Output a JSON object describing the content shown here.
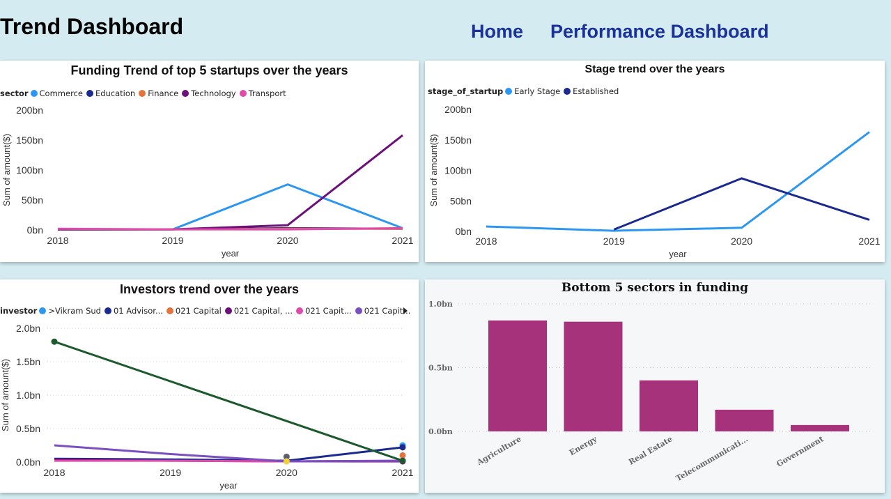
{
  "header": {
    "title": "Trend Dashboard",
    "nav_home": "Home",
    "nav_performance": "Performance Dashboard"
  },
  "colors": {
    "background": "#d4ecf1",
    "nav": "#1a3199",
    "bar": "#a5327a"
  },
  "chart_data": [
    {
      "type": "line",
      "title": "Funding Trend of top 5 startups over the years",
      "legend_title": "sector",
      "x": [
        "2018",
        "2019",
        "2020",
        "2021"
      ],
      "xlabel": "year",
      "ylabel": "Sum of amount($)",
      "ytick_labels": [
        "0bn",
        "50bn",
        "100bn",
        "150bn",
        "200bn"
      ],
      "ylim": [
        0,
        200
      ],
      "series": [
        {
          "name": "Commerce",
          "color": "#2c97f0",
          "values": [
            1,
            1,
            76,
            3
          ]
        },
        {
          "name": "Education",
          "color": "#1a2a8f",
          "values": [
            1,
            1,
            3,
            2
          ]
        },
        {
          "name": "Finance",
          "color": "#e5733a",
          "values": [
            1,
            1,
            2,
            2
          ]
        },
        {
          "name": "Technology",
          "color": "#6b117a",
          "values": [
            1,
            1,
            8,
            158
          ]
        },
        {
          "name": "Transport",
          "color": "#e04bab",
          "values": [
            2,
            1,
            1,
            3
          ]
        }
      ]
    },
    {
      "type": "line",
      "title": "Stage trend over the years",
      "legend_title": "stage_of_startup",
      "x": [
        "2018",
        "2019",
        "2020",
        "2021"
      ],
      "xlabel": "year",
      "ylabel": "Sum of amount($)",
      "ytick_labels": [
        "0bn",
        "50bn",
        "100bn",
        "150bn",
        "200bn"
      ],
      "ylim": [
        0,
        200
      ],
      "series": [
        {
          "name": "Early Stage",
          "color": "#2c97f0",
          "values": [
            8,
            1,
            6,
            163
          ]
        },
        {
          "name": "Established",
          "color": "#1a2a8f",
          "values": [
            null,
            3,
            87,
            19
          ]
        }
      ]
    },
    {
      "type": "line",
      "title": "Investors trend over the years",
      "legend_title": "investor",
      "x": [
        "2018",
        "2019",
        "2020",
        "2021"
      ],
      "xlabel": "year",
      "ylabel": "Sum of amount($)",
      "ytick_labels": [
        "0.0bn",
        "0.5bn",
        "1.0bn",
        "1.5bn",
        "2.0bn"
      ],
      "ylim": [
        0,
        2
      ],
      "series": [
        {
          "name": ">Vikram Sud",
          "color": "#2c97f0",
          "values": [
            null,
            null,
            null,
            0.25
          ]
        },
        {
          "name": "01 Advisor...",
          "color": "#1a2a8f",
          "values": [
            0.05,
            0.04,
            0.02,
            0.22
          ]
        },
        {
          "name": "021 Capital",
          "color": "#e5733a",
          "values": [
            null,
            null,
            null,
            0.1
          ]
        },
        {
          "name": "021 Capital, ...",
          "color": "#6b117a",
          "values": [
            0.04,
            0.02,
            0.01,
            0.01
          ]
        },
        {
          "name": "021 Capit...",
          "color": "#e04bab",
          "values": [
            0.02,
            0.02,
            0.01,
            0.02
          ]
        },
        {
          "name": "021 Capit...",
          "color": "#7a4fbf",
          "values": [
            0.25,
            0.12,
            0.01,
            0.02
          ]
        },
        {
          "name": "",
          "color": "#1c5a2e",
          "values": [
            1.8,
            null,
            null,
            0.02
          ]
        },
        {
          "name": "",
          "color": "#5c6170",
          "values": [
            null,
            null,
            0.08,
            null
          ]
        },
        {
          "name": "",
          "color": "#f2cf3d",
          "values": [
            null,
            null,
            0.01,
            null
          ]
        }
      ]
    },
    {
      "type": "bar",
      "title": "Bottom 5 sectors in funding",
      "categories": [
        "Agriculture",
        "Energy",
        "Real Estate",
        "Telecommunicati...",
        "Government"
      ],
      "values": [
        0.87,
        0.86,
        0.4,
        0.17,
        0.05
      ],
      "ytick_labels": [
        "0.0bn",
        "0.5bn",
        "1.0bn"
      ],
      "ylim": [
        0,
        1
      ],
      "color": "#a5327a"
    }
  ]
}
